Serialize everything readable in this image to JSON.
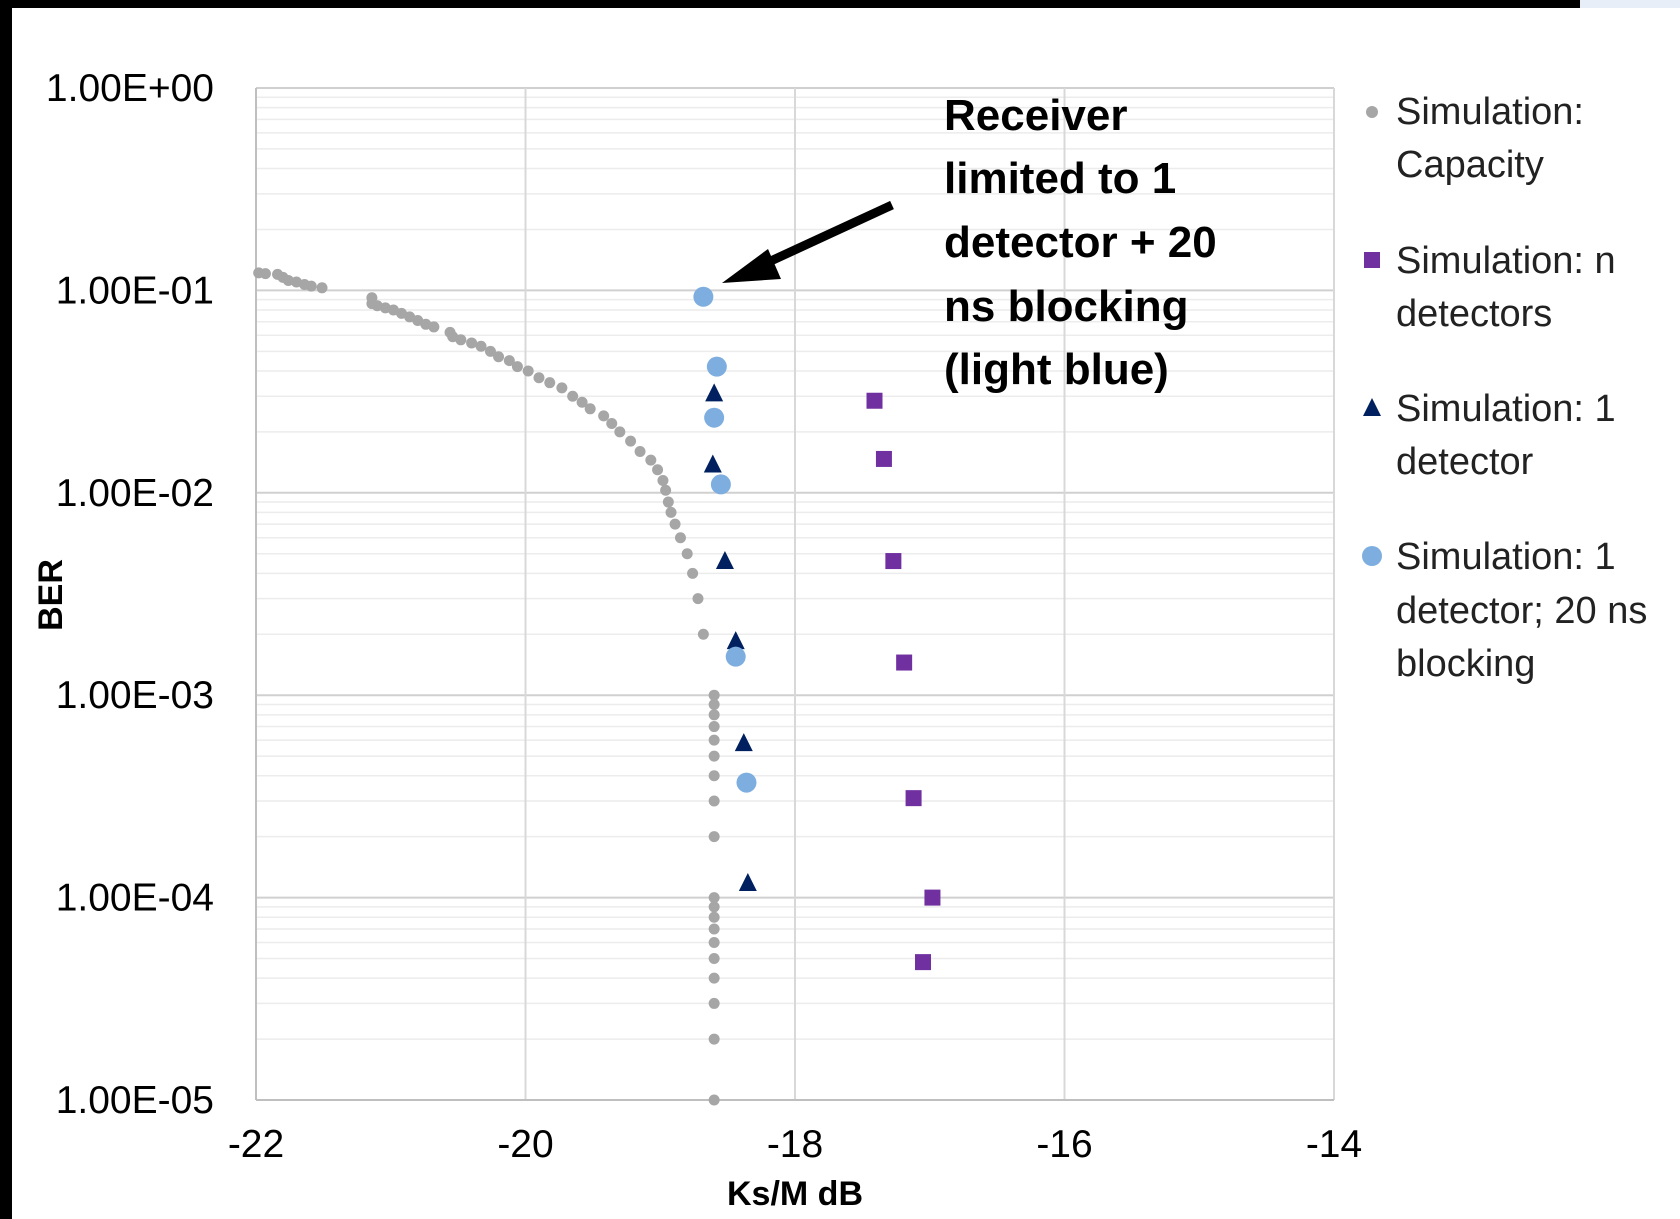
{
  "chart_data": {
    "type": "scatter",
    "title": "",
    "xlabel": "Ks/M dB",
    "ylabel": "BER",
    "xlim": [
      -22,
      -14
    ],
    "ylim": [
      1e-05,
      1
    ],
    "yscale": "log",
    "x_ticks": [
      "-22",
      "-20",
      "-18",
      "-16",
      "-14"
    ],
    "y_ticks": [
      "1.00E+00",
      "1.00E-01",
      "1.00E-02",
      "1.00E-03",
      "1.00E-04",
      "1.00E-05"
    ],
    "grid": true,
    "legend_position": "right",
    "annotation": {
      "lines": [
        "Receiver",
        "limited to 1",
        "detector + 20",
        "ns blocking",
        "(light blue)"
      ],
      "target": [
        -18.68,
        0.093
      ]
    },
    "series": [
      {
        "name": "Simulation: Capacity",
        "legend_lines": [
          "Simulation:",
          "Capacity"
        ],
        "marker": "circle-small",
        "color": "#a6a6a6",
        "points": [
          [
            -21.98,
            0.122
          ],
          [
            -21.93,
            0.121
          ],
          [
            -21.84,
            0.12
          ],
          [
            -21.8,
            0.116
          ],
          [
            -21.76,
            0.112
          ],
          [
            -21.7,
            0.11
          ],
          [
            -21.64,
            0.107
          ],
          [
            -21.59,
            0.105
          ],
          [
            -21.51,
            0.103
          ],
          [
            -21.14,
            0.092
          ],
          [
            -21.14,
            0.086
          ],
          [
            -21.1,
            0.084
          ],
          [
            -21.04,
            0.082
          ],
          [
            -20.98,
            0.08
          ],
          [
            -20.92,
            0.077
          ],
          [
            -20.86,
            0.074
          ],
          [
            -20.8,
            0.071
          ],
          [
            -20.74,
            0.068
          ],
          [
            -20.68,
            0.066
          ],
          [
            -20.56,
            0.062
          ],
          [
            -20.54,
            0.059
          ],
          [
            -20.48,
            0.057
          ],
          [
            -20.4,
            0.055
          ],
          [
            -20.33,
            0.053
          ],
          [
            -20.26,
            0.05
          ],
          [
            -20.2,
            0.047
          ],
          [
            -20.12,
            0.045
          ],
          [
            -20.06,
            0.042
          ],
          [
            -19.98,
            0.04
          ],
          [
            -19.9,
            0.037
          ],
          [
            -19.82,
            0.035
          ],
          [
            -19.73,
            0.033
          ],
          [
            -19.65,
            0.03
          ],
          [
            -19.58,
            0.028
          ],
          [
            -19.52,
            0.026
          ],
          [
            -19.42,
            0.024
          ],
          [
            -19.36,
            0.022
          ],
          [
            -19.3,
            0.02
          ],
          [
            -19.22,
            0.018
          ],
          [
            -19.15,
            0.016
          ],
          [
            -19.07,
            0.0145
          ],
          [
            -19.02,
            0.013
          ],
          [
            -18.98,
            0.0115
          ],
          [
            -18.96,
            0.0103
          ],
          [
            -18.94,
            0.009
          ],
          [
            -18.92,
            0.008
          ],
          [
            -18.89,
            0.007
          ],
          [
            -18.85,
            0.006
          ],
          [
            -18.8,
            0.005
          ],
          [
            -18.76,
            0.004
          ],
          [
            -18.72,
            0.003
          ],
          [
            -18.68,
            0.002
          ],
          [
            -18.6,
            0.001
          ],
          [
            -18.6,
            0.0009
          ],
          [
            -18.6,
            0.0008
          ],
          [
            -18.6,
            0.0007
          ],
          [
            -18.6,
            0.0006
          ],
          [
            -18.6,
            0.0005
          ],
          [
            -18.6,
            0.0004
          ],
          [
            -18.6,
            0.0003
          ],
          [
            -18.6,
            0.0002
          ],
          [
            -18.6,
            0.0001
          ],
          [
            -18.6,
            9e-05
          ],
          [
            -18.6,
            8e-05
          ],
          [
            -18.6,
            7e-05
          ],
          [
            -18.6,
            6e-05
          ],
          [
            -18.6,
            5e-05
          ],
          [
            -18.6,
            4e-05
          ],
          [
            -18.6,
            3e-05
          ],
          [
            -18.6,
            2e-05
          ],
          [
            -18.6,
            1e-05
          ]
        ]
      },
      {
        "name": "Simulation: n detectors",
        "legend_lines": [
          "Simulation: n",
          "detectors"
        ],
        "marker": "square",
        "color": "#7030a0",
        "points": [
          [
            -17.41,
            0.0285
          ],
          [
            -17.34,
            0.0147
          ],
          [
            -17.27,
            0.0046
          ],
          [
            -17.19,
            0.00145
          ],
          [
            -17.12,
            0.00031
          ],
          [
            -16.98,
            0.0001
          ],
          [
            -17.05,
            4.8e-05
          ]
        ]
      },
      {
        "name": "Simulation: 1 detector",
        "legend_lines": [
          "Simulation: 1",
          "detector"
        ],
        "marker": "triangle",
        "color": "#002060",
        "points": [
          [
            -18.6,
            0.031
          ],
          [
            -18.61,
            0.0138
          ],
          [
            -18.52,
            0.0046
          ],
          [
            -18.44,
            0.00185
          ],
          [
            -18.38,
            0.00058
          ],
          [
            -18.35,
            0.000118
          ]
        ]
      },
      {
        "name": "Simulation: 1 detector; 20 ns blocking",
        "legend_lines": [
          "Simulation: 1",
          "detector; 20 ns",
          "blocking"
        ],
        "marker": "circle",
        "color": "#7eaee0",
        "points": [
          [
            -18.68,
            0.093
          ],
          [
            -18.58,
            0.042
          ],
          [
            -18.6,
            0.0235
          ],
          [
            -18.55,
            0.011
          ],
          [
            -18.44,
            0.00155
          ],
          [
            -18.36,
            0.00037
          ]
        ]
      }
    ]
  }
}
